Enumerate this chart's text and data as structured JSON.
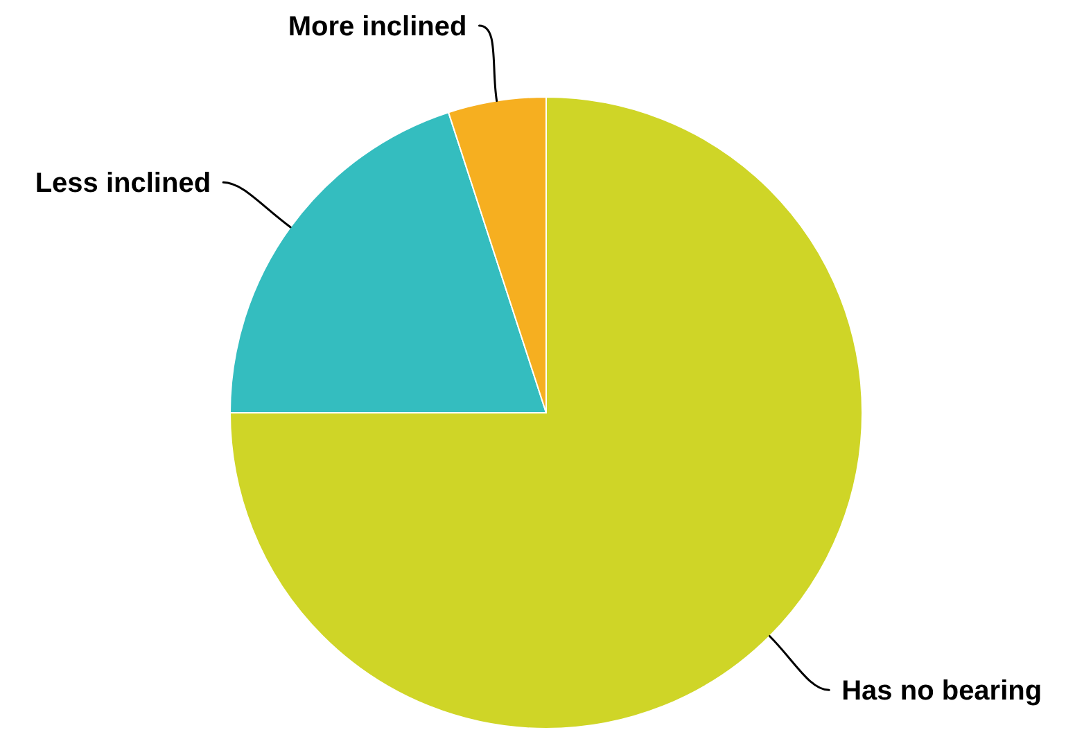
{
  "chart_data": {
    "type": "pie",
    "categories": [
      "Has no bearing",
      "Less inclined",
      "More inclined"
    ],
    "values": [
      75,
      20,
      5
    ],
    "colors": [
      "#cfd527",
      "#34bdbf",
      "#f6af20"
    ]
  }
}
